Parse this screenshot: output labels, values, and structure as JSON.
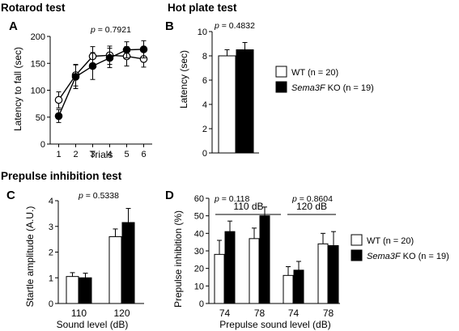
{
  "sections": {
    "rotarod": "Rotarod test",
    "hotplate": "Hot plate test",
    "ppi": "Prepulse inhibition test"
  },
  "panel_letters": [
    "A",
    "B",
    "C",
    "D"
  ],
  "colors": {
    "wt": "#ffffff",
    "ko": "#000000",
    "axis": "#000000"
  },
  "legend_top": [
    {
      "label": "WT (n = 20)",
      "swatch": "#ffffff"
    },
    {
      "label_italic": "Sema3F",
      "label_rest": " KO (n = 19)",
      "swatch": "#000000"
    }
  ],
  "legend_bottom": [
    {
      "label": "WT (n = 20)",
      "swatch": "#ffffff"
    },
    {
      "label_italic": "Sema3F",
      "label_rest": " KO (n = 19)",
      "swatch": "#000000"
    }
  ],
  "chart_data": [
    {
      "panel": "A",
      "type": "line",
      "annotation": {
        "p_label": "p",
        "p_value": " = 0.7921"
      },
      "xlabel": "Trials",
      "ylabel": "Latency to fall (sec)",
      "x": [
        1,
        2,
        3,
        4,
        5,
        6
      ],
      "xlim": [
        0.5,
        6.5
      ],
      "ylim": [
        0,
        200
      ],
      "yticks": [
        0,
        50,
        100,
        150,
        200
      ],
      "series": [
        {
          "group": "wt",
          "marker": "open-circle",
          "values": [
            82,
            128,
            163,
            165,
            163,
            158
          ],
          "err": [
            15,
            20,
            18,
            17,
            18,
            15
          ]
        },
        {
          "group": "ko",
          "marker": "filled-circle",
          "values": [
            52,
            125,
            145,
            160,
            175,
            176
          ],
          "err": [
            12,
            22,
            25,
            18,
            15,
            16
          ]
        }
      ]
    },
    {
      "panel": "B",
      "type": "bar",
      "annotation": {
        "p_label": "p",
        "p_value": " = 0.4832"
      },
      "ylabel": "Latency (sec)",
      "ylim": [
        0,
        10
      ],
      "yticks": [
        0,
        2,
        4,
        6,
        8,
        10
      ],
      "series": [
        {
          "group": "wt",
          "values": [
            8.0
          ],
          "err": [
            0.5
          ]
        },
        {
          "group": "ko",
          "values": [
            8.5
          ],
          "err": [
            0.6
          ]
        }
      ]
    },
    {
      "panel": "C",
      "type": "bar",
      "annotation": {
        "p_label": "p",
        "p_value": " = 0.5338"
      },
      "xlabel": "Sound level (dB)",
      "ylabel": "Startle amplitude (A.U.)",
      "categories": [
        "110",
        "120"
      ],
      "ylim": [
        0,
        4
      ],
      "yticks": [
        0,
        1,
        2,
        3,
        4
      ],
      "series": [
        {
          "group": "wt",
          "values": [
            1.05,
            2.6
          ],
          "err": [
            0.15,
            0.3
          ]
        },
        {
          "group": "ko",
          "values": [
            1.0,
            3.15
          ],
          "err": [
            0.18,
            0.55
          ]
        }
      ]
    },
    {
      "panel": "D",
      "type": "bar",
      "annotations": [
        {
          "p_label": "p",
          "p_value": " = 0.118",
          "bracket": "110 dB"
        },
        {
          "p_label": "p",
          "p_value": " = 0.8604",
          "bracket": "120 dB"
        }
      ],
      "xlabel": "Prepulse sound level (dB)",
      "ylabel": "Prepulse inhibition (%)",
      "categories": [
        "74",
        "78",
        "74",
        "78"
      ],
      "ylim": [
        0,
        60
      ],
      "yticks": [
        0,
        10,
        20,
        30,
        40,
        50,
        60
      ],
      "series": [
        {
          "group": "wt",
          "values": [
            28,
            37,
            16,
            34
          ],
          "err": [
            8,
            6,
            5,
            6
          ]
        },
        {
          "group": "ko",
          "values": [
            41,
            50,
            19,
            33
          ],
          "err": [
            6,
            5,
            5,
            8
          ]
        }
      ]
    }
  ]
}
